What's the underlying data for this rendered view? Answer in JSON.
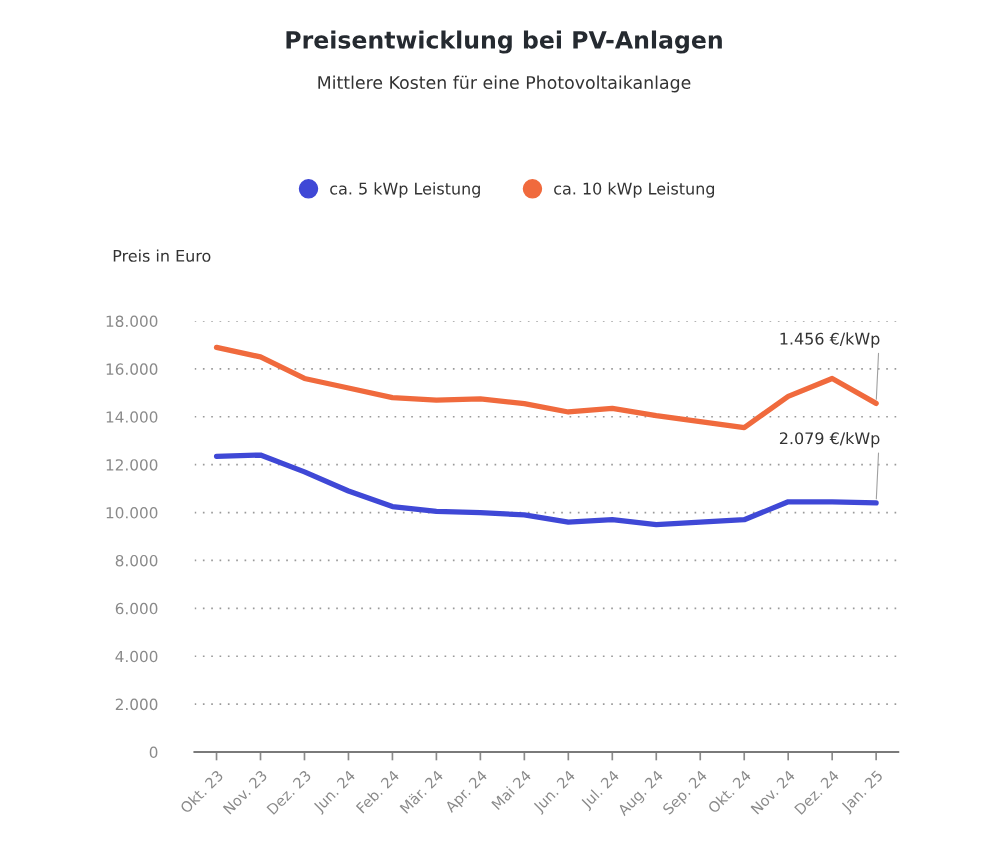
{
  "chart_data": {
    "type": "line",
    "title": "Preisentwicklung bei PV-Anlagen",
    "subtitle": "Mittlere Kosten für eine Photovoltaikanlage",
    "ylabel": "Preis in Euro",
    "categories": [
      "Okt. 23",
      "Nov. 23",
      "Dez. 23",
      "Jun. 24",
      "Feb. 24",
      "Mär. 24",
      "Apr. 24",
      "Mai 24",
      "Jun. 24",
      "Jul. 24",
      "Aug. 24",
      "Sep. 24",
      "Okt. 24",
      "Nov. 24",
      "Dez. 24",
      "Jan. 25"
    ],
    "series": [
      {
        "name": "ca. 5 kWp Leistung",
        "color": "#3f48d6",
        "values": [
          12350,
          12400,
          11700,
          10900,
          10250,
          10050,
          10000,
          9900,
          9600,
          9700,
          9500,
          9600,
          9700,
          10450,
          10450,
          10400
        ]
      },
      {
        "name": "ca. 10 kWp Leistung",
        "color": "#f06a3d",
        "values": [
          16900,
          16500,
          15600,
          15200,
          14800,
          14700,
          14750,
          14550,
          14200,
          14350,
          14050,
          13800,
          13550,
          14850,
          15600,
          14560
        ]
      }
    ],
    "ylim": [
      0,
      18000
    ],
    "yticks": [
      0,
      {
        "value": 2000,
        "label": "2.000"
      },
      {
        "value": 4000,
        "label": "4.000"
      },
      {
        "value": 6000,
        "label": "6.000"
      },
      {
        "value": 8000,
        "label": "8.000"
      },
      {
        "value": 10000,
        "label": "10.000"
      },
      {
        "value": 12000,
        "label": "12.000"
      },
      {
        "value": 14000,
        "label": "14.000"
      },
      {
        "value": 16000,
        "label": "16.000"
      },
      {
        "value": 18000,
        "label": "18.000"
      }
    ],
    "annotations": [
      {
        "text": "1.456 €/kWp",
        "x": "Jan. 25",
        "y": 14560
      },
      {
        "text": "2.079 €/kWp",
        "x": "Jan. 25",
        "y": 10400
      }
    ],
    "grid": "y",
    "legend": "top",
    "line_style": "solid"
  }
}
